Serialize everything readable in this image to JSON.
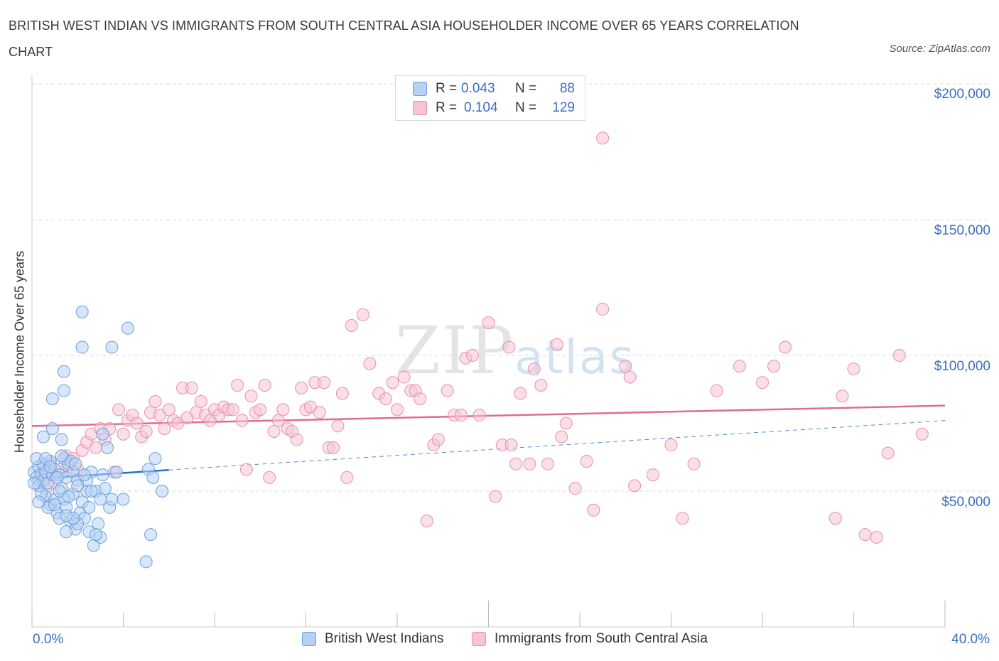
{
  "header": {
    "title": "BRITISH WEST INDIAN VS IMMIGRANTS FROM SOUTH CENTRAL ASIA HOUSEHOLDER INCOME OVER 65 YEARS CORRELATION CHART",
    "source": "Source: ZipAtlas.com"
  },
  "legend": {
    "row1": {
      "r_label": "R =",
      "r_value": "0.043",
      "n_label": "N =",
      "n_value": "88"
    },
    "row2": {
      "r_label": "R =",
      "r_value": "0.104",
      "n_label": "N =",
      "n_value": "129"
    }
  },
  "watermark": {
    "zip": "ZIP",
    "atlas": "atlas"
  },
  "colors": {
    "blue": "#6a9fde",
    "blue_fill": "#b7d1f3",
    "blue_line": "#2a6fc9",
    "pink": "#e88fae",
    "pink_fill": "#f6c4d5",
    "pink_line": "#e06b93",
    "accent_text": "#3a6fc4",
    "grid": "#dddddd"
  },
  "chart_data": {
    "type": "scatter",
    "title": "BRITISH WEST INDIAN VS IMMIGRANTS FROM SOUTH CENTRAL ASIA HOUSEHOLDER INCOME OVER 65 YEARS CORRELATION CHART",
    "xlabel": "",
    "ylabel": "Householder Income Over 65 years",
    "x_tick_labels": [
      "0.0%",
      "40.0%"
    ],
    "y_tick_labels": [
      "$50,000",
      "$100,000",
      "$150,000",
      "$200,000"
    ],
    "xlim": [
      0,
      40
    ],
    "ylim": [
      0,
      200000
    ],
    "grid": true,
    "legend_position": "top-center",
    "series": [
      {
        "name": "British West Indians",
        "color": "#6a9fde",
        "r": 0.043,
        "n": 88,
        "trend": {
          "x0": 0,
          "y0": 54500,
          "x1": 6,
          "y1": 57800,
          "dashed_to_x": 40,
          "dashed_to_y": 76000
        },
        "points": [
          [
            0.1,
            57000
          ],
          [
            0.2,
            55000
          ],
          [
            0.3,
            59000
          ],
          [
            0.3,
            52000
          ],
          [
            0.4,
            56000
          ],
          [
            0.5,
            60000
          ],
          [
            0.5,
            54000
          ],
          [
            0.6,
            48000
          ],
          [
            0.6,
            57000
          ],
          [
            0.7,
            53000
          ],
          [
            0.8,
            61000
          ],
          [
            0.8,
            45000
          ],
          [
            0.9,
            56000
          ],
          [
            1.0,
            58000
          ],
          [
            1.0,
            47000
          ],
          [
            1.1,
            42000
          ],
          [
            1.2,
            56000
          ],
          [
            1.2,
            40000
          ],
          [
            1.3,
            51000
          ],
          [
            1.4,
            62000
          ],
          [
            1.4,
            47000
          ],
          [
            1.5,
            55000
          ],
          [
            1.5,
            44000
          ],
          [
            1.6,
            60000
          ],
          [
            1.7,
            39000
          ],
          [
            1.8,
            57000
          ],
          [
            1.8,
            49000
          ],
          [
            1.9,
            36000
          ],
          [
            2.0,
            54000
          ],
          [
            2.1,
            42000
          ],
          [
            2.2,
            46000
          ],
          [
            2.3,
            40000
          ],
          [
            2.4,
            50000
          ],
          [
            2.5,
            35000
          ],
          [
            2.6,
            57000
          ],
          [
            2.7,
            30000
          ],
          [
            2.8,
            50000
          ],
          [
            2.9,
            38000
          ],
          [
            3.0,
            33000
          ],
          [
            3.1,
            56000
          ],
          [
            3.2,
            51000
          ],
          [
            3.3,
            66000
          ],
          [
            3.4,
            44000
          ],
          [
            3.5,
            47000
          ],
          [
            0.5,
            70000
          ],
          [
            0.9,
            73000
          ],
          [
            1.3,
            69000
          ],
          [
            1.4,
            87000
          ],
          [
            1.4,
            94000
          ],
          [
            0.9,
            84000
          ],
          [
            2.2,
            116000
          ],
          [
            2.2,
            103000
          ],
          [
            3.5,
            103000
          ],
          [
            4.2,
            110000
          ],
          [
            3.1,
            71000
          ],
          [
            4.0,
            47000
          ],
          [
            3.7,
            57000
          ],
          [
            5.1,
            58000
          ],
          [
            5.4,
            62000
          ],
          [
            5.3,
            55000
          ],
          [
            5.7,
            50000
          ],
          [
            5.2,
            34000
          ],
          [
            5.0,
            24000
          ],
          [
            2.0,
            38000
          ],
          [
            1.2,
            50000
          ],
          [
            0.7,
            44000
          ],
          [
            1.7,
            61000
          ],
          [
            1.9,
            60000
          ],
          [
            2.4,
            54000
          ],
          [
            2.6,
            50000
          ],
          [
            0.4,
            49000
          ],
          [
            1.0,
            45000
          ],
          [
            1.5,
            35000
          ],
          [
            2.8,
            34000
          ],
          [
            0.2,
            62000
          ],
          [
            0.6,
            62000
          ],
          [
            1.1,
            55000
          ],
          [
            1.6,
            48000
          ],
          [
            2.0,
            52000
          ],
          [
            1.3,
            63000
          ],
          [
            0.8,
            59000
          ],
          [
            0.3,
            46000
          ],
          [
            1.8,
            40000
          ],
          [
            2.5,
            44000
          ],
          [
            0.1,
            53000
          ],
          [
            3.0,
            47000
          ],
          [
            1.5,
            41000
          ],
          [
            2.3,
            56000
          ]
        ]
      },
      {
        "name": "Immigrants from South Central Asia",
        "color": "#e88fae",
        "r": 0.104,
        "n": 129,
        "trend": {
          "x0": 0,
          "y0": 74000,
          "x1": 40,
          "y1": 81500
        },
        "points": [
          [
            0.3,
            54000
          ],
          [
            0.5,
            58000
          ],
          [
            0.6,
            51000
          ],
          [
            0.7,
            56000
          ],
          [
            0.8,
            60000
          ],
          [
            1.0,
            53000
          ],
          [
            1.2,
            58000
          ],
          [
            1.5,
            63000
          ],
          [
            1.6,
            59000
          ],
          [
            1.8,
            62000
          ],
          [
            2.0,
            58000
          ],
          [
            2.2,
            65000
          ],
          [
            2.4,
            68000
          ],
          [
            2.6,
            71000
          ],
          [
            2.8,
            66000
          ],
          [
            3.0,
            73000
          ],
          [
            3.2,
            69000
          ],
          [
            3.4,
            73000
          ],
          [
            3.6,
            57000
          ],
          [
            3.8,
            80000
          ],
          [
            4.0,
            71000
          ],
          [
            4.2,
            76000
          ],
          [
            4.4,
            78000
          ],
          [
            4.6,
            75000
          ],
          [
            4.8,
            70000
          ],
          [
            5.0,
            72000
          ],
          [
            5.2,
            79000
          ],
          [
            5.4,
            83000
          ],
          [
            5.6,
            78000
          ],
          [
            5.8,
            73000
          ],
          [
            6.0,
            80000
          ],
          [
            6.2,
            76000
          ],
          [
            6.4,
            75000
          ],
          [
            6.6,
            88000
          ],
          [
            6.8,
            77000
          ],
          [
            7.0,
            88000
          ],
          [
            7.2,
            79000
          ],
          [
            7.4,
            83000
          ],
          [
            7.6,
            78000
          ],
          [
            7.8,
            76000
          ],
          [
            8.0,
            80000
          ],
          [
            8.2,
            78000
          ],
          [
            8.4,
            81000
          ],
          [
            8.6,
            80000
          ],
          [
            8.8,
            80000
          ],
          [
            9.0,
            89000
          ],
          [
            9.2,
            76000
          ],
          [
            9.4,
            58000
          ],
          [
            9.6,
            85000
          ],
          [
            9.8,
            79000
          ],
          [
            10.0,
            80000
          ],
          [
            10.2,
            89000
          ],
          [
            10.4,
            55000
          ],
          [
            10.6,
            72000
          ],
          [
            10.8,
            76000
          ],
          [
            11.0,
            80000
          ],
          [
            11.2,
            73000
          ],
          [
            11.4,
            72000
          ],
          [
            11.6,
            69000
          ],
          [
            11.8,
            88000
          ],
          [
            12.0,
            80000
          ],
          [
            12.2,
            81000
          ],
          [
            12.4,
            90000
          ],
          [
            12.6,
            79000
          ],
          [
            12.8,
            90000
          ],
          [
            13.0,
            66000
          ],
          [
            13.2,
            66000
          ],
          [
            13.4,
            74000
          ],
          [
            13.6,
            86000
          ],
          [
            13.8,
            55000
          ],
          [
            14.0,
            111000
          ],
          [
            14.5,
            115000
          ],
          [
            14.8,
            97000
          ],
          [
            15.2,
            86000
          ],
          [
            15.5,
            84000
          ],
          [
            15.8,
            90000
          ],
          [
            16.0,
            80000
          ],
          [
            16.3,
            92000
          ],
          [
            16.6,
            87000
          ],
          [
            16.8,
            87000
          ],
          [
            17.0,
            84000
          ],
          [
            17.3,
            39000
          ],
          [
            17.6,
            67000
          ],
          [
            17.8,
            69000
          ],
          [
            18.2,
            87000
          ],
          [
            18.5,
            78000
          ],
          [
            18.8,
            78000
          ],
          [
            19.0,
            99000
          ],
          [
            19.3,
            100000
          ],
          [
            19.6,
            78000
          ],
          [
            20.0,
            112000
          ],
          [
            20.3,
            48000
          ],
          [
            20.6,
            67000
          ],
          [
            20.9,
            103000
          ],
          [
            21.0,
            67000
          ],
          [
            21.2,
            60000
          ],
          [
            21.4,
            86000
          ],
          [
            21.8,
            60000
          ],
          [
            22.0,
            95000
          ],
          [
            22.3,
            89000
          ],
          [
            22.6,
            60000
          ],
          [
            23.0,
            104000
          ],
          [
            23.2,
            70000
          ],
          [
            23.4,
            75000
          ],
          [
            23.8,
            51000
          ],
          [
            24.3,
            61000
          ],
          [
            24.6,
            43000
          ],
          [
            25.0,
            117000
          ],
          [
            26.0,
            96000
          ],
          [
            26.2,
            92000
          ],
          [
            26.4,
            52000
          ],
          [
            27.2,
            56000
          ],
          [
            28.0,
            67000
          ],
          [
            28.5,
            40000
          ],
          [
            29.0,
            60000
          ],
          [
            30.0,
            87000
          ],
          [
            31.0,
            96000
          ],
          [
            32.0,
            90000
          ],
          [
            32.5,
            96000
          ],
          [
            33.0,
            103000
          ],
          [
            35.2,
            40000
          ],
          [
            35.5,
            85000
          ],
          [
            36.0,
            95000
          ],
          [
            36.5,
            34000
          ],
          [
            37.0,
            33000
          ],
          [
            37.5,
            64000
          ],
          [
            38.0,
            100000
          ],
          [
            39.0,
            71000
          ],
          [
            25.0,
            180000
          ]
        ]
      }
    ]
  }
}
